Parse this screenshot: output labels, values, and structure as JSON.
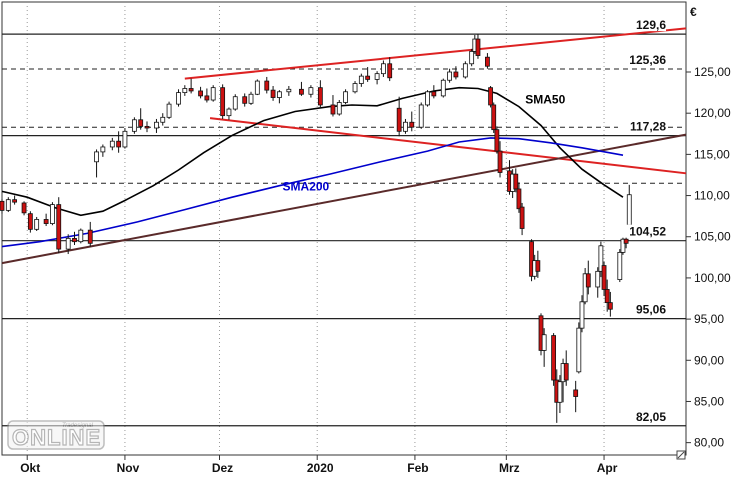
{
  "chart_data": {
    "type": "candlestick",
    "currency_symbol": "€",
    "y_range": [
      78.5,
      133.5
    ],
    "y_ticks": [
      80,
      85,
      90,
      95,
      100,
      105,
      110,
      115,
      120,
      125
    ],
    "y_tick_labels": [
      "80,00",
      "85,00",
      "90,00",
      "95,00",
      "100,00",
      "105,00",
      "110,00",
      "115,00",
      "120,00",
      "125,00"
    ],
    "x_range": [
      "2019-09-23",
      "2020-04-27"
    ],
    "x_tick_labels": [
      {
        "date": "2019-10-01",
        "label": "Okt"
      },
      {
        "date": "2019-11-01",
        "label": "Nov"
      },
      {
        "date": "2019-12-01",
        "label": "Dez"
      },
      {
        "date": "2020-01-01",
        "label": "2020"
      },
      {
        "date": "2020-02-01",
        "label": "Feb"
      },
      {
        "date": "2020-03-01",
        "label": "Mrz"
      },
      {
        "date": "2020-04-01",
        "label": "Apr"
      }
    ],
    "horizontal_levels": [
      {
        "value": 129.6,
        "label": "129,6",
        "style": "solid"
      },
      {
        "value": 125.36,
        "label": "125,36",
        "style": "dashed"
      },
      {
        "value": 117.28,
        "label": "117,28",
        "style": "solid"
      },
      {
        "value": 111.5,
        "label": "",
        "style": "dashed"
      },
      {
        "value": 118.3,
        "label": "",
        "style": "dashed"
      },
      {
        "value": 104.52,
        "label": "104,52",
        "style": "solid"
      },
      {
        "value": 95.06,
        "label": "95,06",
        "style": "solid"
      },
      {
        "value": 82.05,
        "label": "82,05",
        "style": "solid"
      }
    ],
    "trendlines": [
      {
        "color": "#dd2222",
        "points": [
          [
            "2019-11-20",
            124.2
          ],
          [
            "2020-04-27",
            130.3
          ]
        ]
      },
      {
        "color": "#dd2222",
        "points": [
          [
            "2019-11-28",
            119.4
          ],
          [
            "2020-04-27",
            112.7
          ]
        ]
      },
      {
        "color": "#5a2a2a",
        "points": [
          [
            "2019-09-23",
            101.8
          ],
          [
            "2020-04-27",
            117.4
          ]
        ]
      }
    ],
    "moving_averages": [
      {
        "name": "SMA50",
        "color": "#000000",
        "points": [
          [
            "2019-09-23",
            110.5
          ],
          [
            "2019-10-01",
            109.8
          ],
          [
            "2019-10-10",
            108.5
          ],
          [
            "2019-10-18",
            107.6
          ],
          [
            "2019-10-25",
            108.1
          ],
          [
            "2019-11-01",
            109.4
          ],
          [
            "2019-11-10",
            111.2
          ],
          [
            "2019-11-18",
            113.1
          ],
          [
            "2019-11-26",
            115.2
          ],
          [
            "2019-12-05",
            117.3
          ],
          [
            "2019-12-15",
            119.1
          ],
          [
            "2019-12-25",
            120.2
          ],
          [
            "2020-01-05",
            120.8
          ],
          [
            "2020-01-12",
            121.0
          ],
          [
            "2020-01-20",
            120.9
          ],
          [
            "2020-01-28",
            121.8
          ],
          [
            "2020-02-07",
            122.7
          ],
          [
            "2020-02-15",
            123.1
          ],
          [
            "2020-02-21",
            123.0
          ],
          [
            "2020-02-27",
            122.4
          ],
          [
            "2020-03-05",
            120.8
          ],
          [
            "2020-03-12",
            118.5
          ],
          [
            "2020-03-18",
            115.8
          ],
          [
            "2020-03-25",
            113.2
          ],
          [
            "2020-04-01",
            111.3
          ],
          [
            "2020-04-07",
            109.8
          ]
        ]
      },
      {
        "name": "SMA200",
        "color": "#0000cc",
        "points": [
          [
            "2019-09-23",
            103.8
          ],
          [
            "2019-10-05",
            104.4
          ],
          [
            "2019-10-20",
            105.4
          ],
          [
            "2019-11-05",
            106.8
          ],
          [
            "2019-11-20",
            108.3
          ],
          [
            "2019-12-05",
            109.8
          ],
          [
            "2019-12-20",
            111.2
          ],
          [
            "2020-01-05",
            112.6
          ],
          [
            "2020-01-20",
            114.0
          ],
          [
            "2020-02-05",
            115.4
          ],
          [
            "2020-02-15",
            116.5
          ],
          [
            "2020-02-25",
            117.0
          ],
          [
            "2020-03-05",
            116.9
          ],
          [
            "2020-03-15",
            116.4
          ],
          [
            "2020-03-25",
            115.8
          ],
          [
            "2020-04-07",
            114.9
          ]
        ]
      }
    ],
    "annotations": [
      {
        "text": "SMA50",
        "date": "2020-03-07",
        "value": 121.2,
        "color": "#000000"
      },
      {
        "text": "SMA200",
        "date": "2019-12-21",
        "value": 110.6,
        "color": "#0000cc"
      }
    ],
    "candles": [
      [
        "2019-09-23",
        109.3,
        109.6,
        107.8,
        108.2
      ],
      [
        "2019-09-25",
        108.2,
        109.8,
        108.0,
        109.5
      ],
      [
        "2019-09-27",
        109.5,
        110.0,
        108.9,
        109.2
      ],
      [
        "2019-09-30",
        109.1,
        109.3,
        107.6,
        107.9
      ],
      [
        "2019-10-02",
        107.8,
        108.1,
        105.5,
        105.9
      ],
      [
        "2019-10-04",
        105.9,
        107.4,
        105.7,
        107.1
      ],
      [
        "2019-10-07",
        107.1,
        107.8,
        106.3,
        106.6
      ],
      [
        "2019-10-09",
        106.6,
        109.2,
        106.4,
        108.9
      ],
      [
        "2019-10-11",
        108.9,
        109.8,
        103.0,
        103.5
      ],
      [
        "2019-10-14",
        103.5,
        105.3,
        102.9,
        104.8
      ],
      [
        "2019-10-16",
        104.8,
        105.6,
        104.0,
        104.4
      ],
      [
        "2019-10-18",
        104.4,
        106.0,
        104.2,
        105.8
      ],
      [
        "2019-10-21",
        105.8,
        106.8,
        103.8,
        104.2
      ],
      [
        "2019-10-23",
        114.1,
        115.6,
        112.2,
        115.3
      ],
      [
        "2019-10-25",
        115.3,
        116.2,
        114.7,
        115.9
      ],
      [
        "2019-10-28",
        115.9,
        117.0,
        115.5,
        116.6
      ],
      [
        "2019-10-30",
        116.6,
        117.8,
        115.2,
        115.9
      ],
      [
        "2019-11-01",
        115.9,
        118.2,
        115.7,
        117.8
      ],
      [
        "2019-11-04",
        117.8,
        119.5,
        117.5,
        119.2
      ],
      [
        "2019-11-06",
        119.2,
        120.6,
        118.0,
        118.4
      ],
      [
        "2019-11-08",
        118.4,
        119.0,
        117.7,
        118.2
      ],
      [
        "2019-11-11",
        118.2,
        119.3,
        117.6,
        118.9
      ],
      [
        "2019-11-13",
        118.9,
        120.0,
        118.5,
        119.5
      ],
      [
        "2019-11-15",
        119.5,
        121.4,
        119.3,
        121.1
      ],
      [
        "2019-11-18",
        121.1,
        122.9,
        120.8,
        122.5
      ],
      [
        "2019-11-20",
        122.5,
        123.4,
        122.1,
        123.0
      ],
      [
        "2019-11-22",
        123.0,
        124.2,
        122.4,
        122.7
      ],
      [
        "2019-11-25",
        122.7,
        123.2,
        121.8,
        122.1
      ],
      [
        "2019-11-27",
        122.1,
        123.0,
        121.3,
        121.6
      ],
      [
        "2019-11-29",
        121.6,
        123.4,
        121.4,
        123.1
      ],
      [
        "2019-12-02",
        123.1,
        123.5,
        119.3,
        119.7
      ],
      [
        "2019-12-04",
        119.7,
        120.7,
        119.2,
        120.5
      ],
      [
        "2019-12-06",
        120.5,
        122.3,
        120.3,
        122.0
      ],
      [
        "2019-12-09",
        122.0,
        122.4,
        120.8,
        121.2
      ],
      [
        "2019-12-11",
        121.2,
        122.6,
        121.0,
        122.3
      ],
      [
        "2019-12-13",
        122.3,
        124.1,
        122.2,
        123.9
      ],
      [
        "2019-12-16",
        123.9,
        124.4,
        122.4,
        122.8
      ],
      [
        "2019-12-18",
        122.8,
        123.3,
        121.5,
        121.9
      ],
      [
        "2019-12-20",
        121.9,
        122.8,
        121.2,
        122.6
      ],
      [
        "2019-12-23",
        122.6,
        123.3,
        122.1,
        122.9
      ],
      [
        "2019-12-27",
        122.9,
        123.8,
        122.1,
        122.3
      ],
      [
        "2019-12-30",
        122.3,
        123.4,
        121.9,
        123.1
      ],
      [
        "2020-01-02",
        123.1,
        124.0,
        120.6,
        121.0
      ],
      [
        "2020-01-06",
        121.0,
        122.2,
        119.6,
        119.9
      ],
      [
        "2020-01-08",
        119.9,
        121.6,
        119.7,
        121.3
      ],
      [
        "2020-01-10",
        121.3,
        122.9,
        121.1,
        122.6
      ],
      [
        "2020-01-13",
        122.6,
        123.9,
        122.4,
        123.6
      ],
      [
        "2020-01-15",
        123.6,
        124.8,
        123.2,
        124.5
      ],
      [
        "2020-01-17",
        124.5,
        125.6,
        123.8,
        124.1
      ],
      [
        "2020-01-20",
        124.1,
        125.1,
        123.5,
        124.8
      ],
      [
        "2020-01-22",
        124.8,
        126.4,
        124.4,
        126.0
      ],
      [
        "2020-01-24",
        126.0,
        126.8,
        123.9,
        124.3
      ],
      [
        "2020-01-27",
        120.6,
        122.0,
        117.2,
        117.8
      ],
      [
        "2020-01-29",
        117.8,
        119.3,
        117.5,
        118.9
      ],
      [
        "2020-01-31",
        118.9,
        120.2,
        117.8,
        118.3
      ],
      [
        "2020-02-03",
        118.3,
        121.3,
        118.1,
        121.0
      ],
      [
        "2020-02-05",
        121.0,
        122.8,
        120.8,
        122.6
      ],
      [
        "2020-02-07",
        122.6,
        123.4,
        121.8,
        122.1
      ],
      [
        "2020-02-10",
        122.1,
        124.2,
        121.9,
        124.0
      ],
      [
        "2020-02-12",
        124.0,
        125.4,
        123.7,
        125.0
      ],
      [
        "2020-02-14",
        125.0,
        125.7,
        124.1,
        124.4
      ],
      [
        "2020-02-17",
        124.4,
        126.3,
        124.2,
        126.0
      ],
      [
        "2020-02-19",
        126.0,
        127.8,
        125.7,
        127.5
      ],
      [
        "2020-02-20",
        127.5,
        129.5,
        127.2,
        129.0
      ],
      [
        "2020-02-21",
        129.0,
        129.6,
        126.6,
        127.0
      ],
      [
        "2020-02-24",
        126.8,
        127.3,
        125.4,
        125.7
      ],
      [
        "2020-02-25",
        123.1,
        123.3,
        120.7,
        121.0
      ],
      [
        "2020-02-26",
        121.0,
        121.3,
        117.6,
        118.0
      ],
      [
        "2020-02-27",
        118.0,
        118.4,
        115.1,
        115.4
      ],
      [
        "2020-02-28",
        115.4,
        116.6,
        112.2,
        112.8
      ],
      [
        "2020-03-02",
        113.0,
        114.3,
        110.1,
        110.5
      ],
      [
        "2020-03-03",
        110.5,
        113.2,
        109.7,
        112.6
      ],
      [
        "2020-03-04",
        112.6,
        113.3,
        110.4,
        110.8
      ],
      [
        "2020-03-05",
        110.8,
        111.6,
        107.9,
        108.4
      ],
      [
        "2020-03-06",
        108.6,
        109.1,
        105.2,
        106.0
      ],
      [
        "2020-03-09",
        104.4,
        104.7,
        99.6,
        100.2
      ],
      [
        "2020-03-10",
        100.2,
        102.8,
        99.8,
        102.1
      ],
      [
        "2020-03-11",
        102.1,
        103.3,
        100.0,
        100.8
      ],
      [
        "2020-03-12",
        95.4,
        95.7,
        90.6,
        91.2
      ],
      [
        "2020-03-13",
        91.2,
        93.9,
        89.2,
        93.1
      ],
      [
        "2020-03-16",
        93.0,
        93.3,
        86.9,
        87.6
      ],
      [
        "2020-03-17",
        87.6,
        88.9,
        82.4,
        84.9
      ],
      [
        "2020-03-18",
        84.9,
        88.2,
        83.6,
        87.4
      ],
      [
        "2020-03-19",
        87.4,
        90.2,
        84.9,
        89.6
      ],
      [
        "2020-03-20",
        89.6,
        91.2,
        86.9,
        87.6
      ],
      [
        "2020-03-23",
        86.4,
        87.5,
        83.7,
        85.6
      ],
      [
        "2020-03-24",
        88.6,
        94.6,
        88.4,
        93.9
      ],
      [
        "2020-03-25",
        93.9,
        97.9,
        93.4,
        97.1
      ],
      [
        "2020-03-26",
        97.1,
        101.2,
        96.8,
        100.5
      ],
      [
        "2020-03-27",
        100.5,
        102.1,
        98.0,
        98.9
      ],
      [
        "2020-03-30",
        98.9,
        101.3,
        97.6,
        100.8
      ],
      [
        "2020-03-31",
        100.8,
        104.4,
        100.1,
        103.9
      ],
      [
        "2020-04-01",
        101.5,
        102.0,
        97.8,
        98.6
      ],
      [
        "2020-04-02",
        98.6,
        99.8,
        95.9,
        97.0
      ],
      [
        "2020-04-03",
        97.0,
        98.3,
        95.3,
        96.2
      ],
      [
        "2020-04-06",
        99.8,
        103.5,
        99.5,
        103.1
      ],
      [
        "2020-04-07",
        103.1,
        105.4,
        102.8,
        104.7
      ],
      [
        "2020-04-08",
        104.7,
        105.1,
        103.6,
        104.2
      ],
      [
        "2020-04-09",
        106.4,
        111.3,
        105.9,
        110.1
      ]
    ]
  }
}
